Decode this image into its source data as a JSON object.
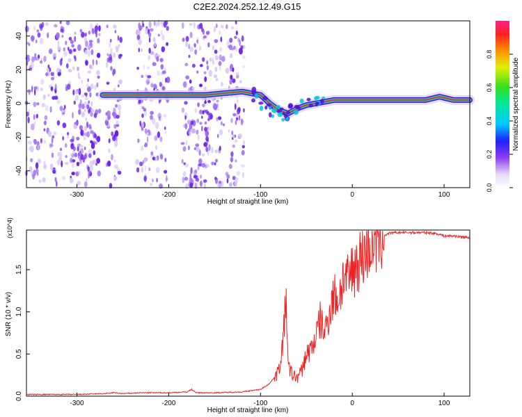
{
  "title": "C2E2.2024.252.12.49.G15",
  "colorbar": {
    "label": "Normalized spectral amplitude",
    "ticks": [
      "0.0",
      "0.2",
      "0.4",
      "0.6",
      "0.8"
    ]
  },
  "chart_data": [
    {
      "type": "heatmap",
      "xlabel": "Height of straight line (km)",
      "ylabel": "Frequency (Hz)",
      "xlim": [
        -355,
        128
      ],
      "ylim": [
        -50,
        49
      ],
      "xticks": [
        -300,
        -200,
        -100,
        0,
        100
      ],
      "yticks": [
        -40,
        -20,
        0,
        20,
        40
      ],
      "colorscale_range": [
        0,
        1
      ],
      "ridge": {
        "x": [
          -272,
          -250,
          -220,
          -200,
          -180,
          -160,
          -140,
          -120,
          -100,
          -90,
          -80,
          -70,
          -60,
          -50,
          -40,
          -30,
          -20,
          -10,
          0,
          20,
          50,
          80,
          95,
          110,
          128
        ],
        "y": [
          5,
          5,
          5,
          5,
          5,
          5,
          6,
          7,
          5,
          0,
          -4,
          -6,
          -3,
          -1,
          0,
          1,
          2,
          2,
          2,
          2,
          2,
          2,
          4,
          2,
          2
        ]
      },
      "noise_bands_x": [
        [
          -355,
          -275
        ],
        [
          -268,
          -252
        ],
        [
          -235,
          -200
        ],
        [
          -185,
          -140
        ],
        [
          -137,
          -118
        ]
      ]
    },
    {
      "type": "line",
      "xlabel": "Height of straight line (km)",
      "ylabel": "SNR (10 * v/v)",
      "y_multiplier": "(x10^4)",
      "xlim": [
        -355,
        128
      ],
      "ylim": [
        0,
        1.97
      ],
      "xticks": [
        -300,
        -200,
        -100,
        0,
        100
      ],
      "yticks": [
        0.0,
        0.5,
        1.0,
        1.5
      ],
      "color": "#ee2222",
      "series": [
        {
          "x": [
            -355,
            -300,
            -270,
            -260,
            -250,
            -230,
            -200,
            -180,
            -175,
            -170,
            -150,
            -120,
            -100,
            -90,
            -80,
            -75,
            -72,
            -70,
            -65,
            -60,
            -55,
            -50,
            -45,
            -40,
            -35,
            -30,
            -25,
            -20,
            -15,
            -10,
            -5,
            0,
            10,
            20,
            30,
            40,
            50,
            60,
            70,
            80,
            90,
            95,
            100,
            110,
            128
          ],
          "y": [
            0.02,
            0.02,
            0.03,
            0.04,
            0.03,
            0.04,
            0.04,
            0.05,
            0.08,
            0.04,
            0.04,
            0.05,
            0.08,
            0.15,
            0.3,
            0.7,
            1.2,
            0.35,
            0.25,
            0.22,
            0.3,
            0.5,
            0.55,
            0.7,
            0.9,
            0.75,
            1.0,
            1.2,
            1.15,
            1.4,
            1.35,
            1.5,
            1.65,
            1.8,
            1.88,
            1.93,
            1.94,
            1.94,
            1.94,
            1.94,
            1.93,
            1.92,
            1.9,
            1.9,
            1.88
          ]
        }
      ]
    }
  ]
}
